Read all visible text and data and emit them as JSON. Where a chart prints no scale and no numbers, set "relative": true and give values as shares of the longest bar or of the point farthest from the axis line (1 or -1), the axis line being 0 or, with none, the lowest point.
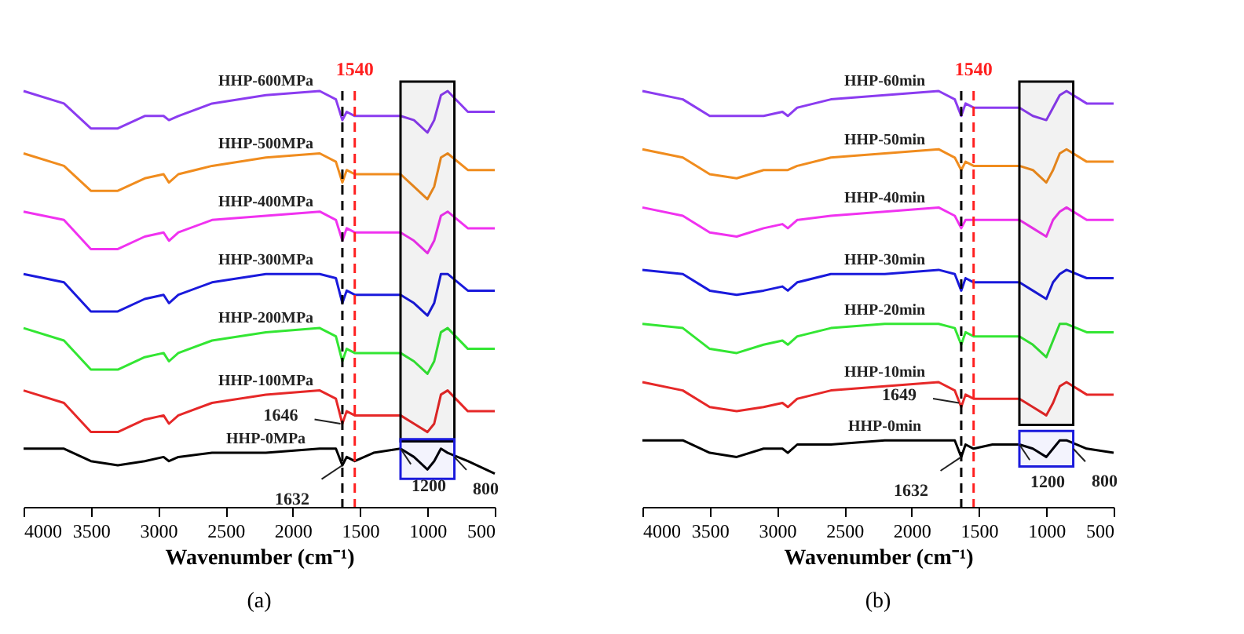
{
  "chart_data": [
    {
      "type": "line",
      "title": "(a)",
      "xlabel": "Wavenumber (cm⁻¹)",
      "relative": true,
      "legend": false,
      "grid": false,
      "line_style": "solid",
      "x": [
        4000,
        3700,
        3500,
        3300,
        3100,
        2960,
        2920,
        2850,
        2600,
        2200,
        1800,
        1680,
        1632,
        1600,
        1540,
        1400,
        1200,
        1100,
        1000,
        950,
        900,
        850,
        700,
        500
      ],
      "xlim": [
        4000,
        500
      ],
      "xticks": [
        4000,
        3500,
        3000,
        2500,
        2000,
        1500,
        1000,
        500
      ],
      "series": [
        {
          "name": "HHP-600MPa",
          "color": "#8b3cf0",
          "values": [
            1.0,
            0.97,
            0.91,
            0.91,
            0.94,
            0.94,
            0.93,
            0.94,
            0.97,
            0.99,
            1.0,
            0.98,
            0.93,
            0.95,
            0.94,
            0.94,
            0.94,
            0.93,
            0.9,
            0.93,
            0.99,
            1.0,
            0.95,
            0.95
          ]
        },
        {
          "name": "HHP-500MPa",
          "color": "#f08c1e",
          "values": [
            0.85,
            0.82,
            0.76,
            0.76,
            0.79,
            0.8,
            0.78,
            0.8,
            0.82,
            0.84,
            0.85,
            0.83,
            0.78,
            0.81,
            0.8,
            0.8,
            0.8,
            0.77,
            0.74,
            0.77,
            0.84,
            0.85,
            0.81,
            0.81
          ]
        },
        {
          "name": "HHP-400MPa",
          "color": "#f032f0",
          "values": [
            0.71,
            0.69,
            0.62,
            0.62,
            0.65,
            0.66,
            0.64,
            0.66,
            0.69,
            0.7,
            0.71,
            0.69,
            0.64,
            0.67,
            0.66,
            0.66,
            0.66,
            0.64,
            0.61,
            0.64,
            0.7,
            0.71,
            0.67,
            0.67
          ]
        },
        {
          "name": "HHP-300MPa",
          "color": "#1a1adc",
          "values": [
            0.56,
            0.54,
            0.47,
            0.47,
            0.5,
            0.51,
            0.49,
            0.51,
            0.54,
            0.56,
            0.56,
            0.55,
            0.49,
            0.52,
            0.51,
            0.51,
            0.51,
            0.49,
            0.46,
            0.49,
            0.56,
            0.56,
            0.52,
            0.52
          ]
        },
        {
          "name": "HHP-200MPa",
          "color": "#33e633",
          "values": [
            0.43,
            0.4,
            0.33,
            0.33,
            0.36,
            0.37,
            0.35,
            0.37,
            0.4,
            0.42,
            0.43,
            0.41,
            0.35,
            0.38,
            0.37,
            0.37,
            0.37,
            0.35,
            0.32,
            0.35,
            0.42,
            0.43,
            0.38,
            0.38
          ]
        },
        {
          "name": "HHP-100MPa",
          "color": "#e62828",
          "values": [
            0.28,
            0.25,
            0.18,
            0.18,
            0.21,
            0.22,
            0.2,
            0.22,
            0.25,
            0.27,
            0.28,
            0.26,
            0.2,
            0.23,
            0.22,
            0.22,
            0.22,
            0.2,
            0.18,
            0.2,
            0.27,
            0.28,
            0.23,
            0.23
          ]
        },
        {
          "name": "HHP-0MPa",
          "color": "#000000",
          "values": [
            0.14,
            0.14,
            0.11,
            0.1,
            0.11,
            0.12,
            0.11,
            0.12,
            0.13,
            0.13,
            0.14,
            0.14,
            0.1,
            0.12,
            0.11,
            0.13,
            0.14,
            0.12,
            0.09,
            0.11,
            0.14,
            0.13,
            0.11,
            0.08
          ]
        }
      ],
      "ref_lines": [
        {
          "axis": "x",
          "value": 1632,
          "color": "#000000",
          "line_style": "dashed"
        },
        {
          "axis": "x",
          "value": 1540,
          "label": "1540",
          "color": "#ff2020",
          "line_style": "dashed"
        }
      ],
      "bands": [
        {
          "axis": "x",
          "from": 1200,
          "to": 800,
          "color": "#000000"
        },
        {
          "axis": "x",
          "from": 1200,
          "to": 800,
          "color": "#1a1adc"
        }
      ],
      "annotations": [
        {
          "text": "1646",
          "x": 1646,
          "y": 0.2
        },
        {
          "text": "1632",
          "x": 1632,
          "y": 0.1
        },
        {
          "text": "1200",
          "x": 1200,
          "y": 0.14
        },
        {
          "text": "800",
          "x": 800,
          "y": 0.12
        }
      ]
    },
    {
      "type": "line",
      "title": "(b)",
      "xlabel": "Wavenumber (cm⁻¹)",
      "relative": true,
      "legend": false,
      "grid": false,
      "line_style": "solid",
      "x": [
        4000,
        3700,
        3500,
        3300,
        3100,
        2960,
        2920,
        2850,
        2600,
        2200,
        1800,
        1680,
        1632,
        1600,
        1540,
        1400,
        1200,
        1100,
        1000,
        950,
        900,
        850,
        700,
        500
      ],
      "xlim": [
        4000,
        500
      ],
      "xticks": [
        4000,
        3500,
        3000,
        2500,
        2000,
        1500,
        1000,
        500
      ],
      "series": [
        {
          "name": "HHP-60min",
          "color": "#8b3cf0",
          "values": [
            1.0,
            0.98,
            0.94,
            0.94,
            0.94,
            0.95,
            0.94,
            0.96,
            0.98,
            0.99,
            1.0,
            0.98,
            0.94,
            0.97,
            0.96,
            0.96,
            0.96,
            0.94,
            0.93,
            0.96,
            0.99,
            1.0,
            0.97,
            0.97
          ]
        },
        {
          "name": "HHP-50min",
          "color": "#f08c1e",
          "values": [
            0.86,
            0.84,
            0.8,
            0.79,
            0.81,
            0.81,
            0.81,
            0.82,
            0.84,
            0.85,
            0.86,
            0.84,
            0.81,
            0.83,
            0.82,
            0.82,
            0.82,
            0.81,
            0.78,
            0.81,
            0.85,
            0.86,
            0.83,
            0.83
          ]
        },
        {
          "name": "HHP-40min",
          "color": "#f032f0",
          "values": [
            0.72,
            0.7,
            0.66,
            0.65,
            0.67,
            0.68,
            0.67,
            0.69,
            0.7,
            0.71,
            0.72,
            0.7,
            0.67,
            0.69,
            0.69,
            0.69,
            0.69,
            0.67,
            0.65,
            0.69,
            0.71,
            0.72,
            0.69,
            0.69
          ]
        },
        {
          "name": "HHP-30min",
          "color": "#1a1adc",
          "values": [
            0.57,
            0.56,
            0.52,
            0.51,
            0.52,
            0.53,
            0.52,
            0.54,
            0.56,
            0.56,
            0.57,
            0.56,
            0.52,
            0.55,
            0.54,
            0.54,
            0.54,
            0.52,
            0.5,
            0.54,
            0.56,
            0.57,
            0.55,
            0.55
          ]
        },
        {
          "name": "HHP-20min",
          "color": "#33e633",
          "values": [
            0.44,
            0.43,
            0.38,
            0.37,
            0.39,
            0.4,
            0.39,
            0.41,
            0.43,
            0.44,
            0.44,
            0.43,
            0.39,
            0.42,
            0.41,
            0.41,
            0.41,
            0.39,
            0.36,
            0.4,
            0.44,
            0.44,
            0.42,
            0.42
          ]
        },
        {
          "name": "HHP-10min",
          "color": "#e62828",
          "values": [
            0.3,
            0.28,
            0.24,
            0.23,
            0.24,
            0.25,
            0.24,
            0.26,
            0.28,
            0.29,
            0.3,
            0.28,
            0.24,
            0.27,
            0.26,
            0.26,
            0.26,
            0.24,
            0.22,
            0.25,
            0.29,
            0.3,
            0.27,
            0.27
          ]
        },
        {
          "name": "HHP-0min",
          "color": "#000000",
          "values": [
            0.16,
            0.16,
            0.13,
            0.12,
            0.14,
            0.14,
            0.13,
            0.15,
            0.15,
            0.16,
            0.16,
            0.16,
            0.12,
            0.15,
            0.14,
            0.15,
            0.15,
            0.14,
            0.12,
            0.14,
            0.16,
            0.16,
            0.14,
            0.13
          ]
        }
      ],
      "ref_lines": [
        {
          "axis": "x",
          "value": 1632,
          "color": "#000000",
          "line_style": "dashed"
        },
        {
          "axis": "x",
          "value": 1540,
          "label": "1540",
          "color": "#ff2020",
          "line_style": "dashed"
        }
      ],
      "bands": [
        {
          "axis": "x",
          "from": 1200,
          "to": 800,
          "color": "#000000"
        },
        {
          "axis": "x",
          "from": 1200,
          "to": 800,
          "color": "#1a1adc"
        }
      ],
      "annotations": [
        {
          "text": "1649",
          "x": 1649,
          "y": 0.25
        },
        {
          "text": "1632",
          "x": 1632,
          "y": 0.12
        },
        {
          "text": "1200",
          "x": 1200,
          "y": 0.15
        },
        {
          "text": "800",
          "x": 800,
          "y": 0.14
        }
      ]
    }
  ]
}
